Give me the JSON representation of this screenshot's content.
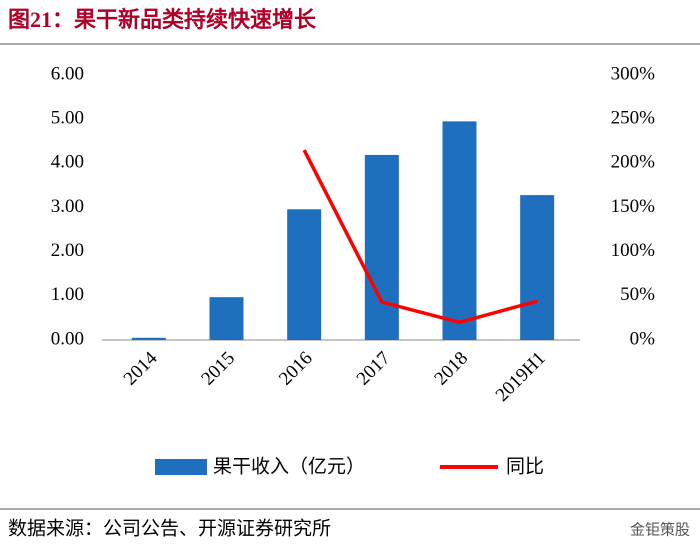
{
  "chart_data": {
    "type": "bar",
    "title": "图21：果干新品类持续快速增长",
    "categories": [
      "2014",
      "2015",
      "2016",
      "2017",
      "2018",
      "2019H1"
    ],
    "series": [
      {
        "name": "果干收入（亿元）",
        "type": "bar",
        "color": "#1f6fbf",
        "values": [
          0.05,
          0.97,
          2.96,
          4.19,
          4.95,
          3.28
        ]
      },
      {
        "name": "同比",
        "type": "line",
        "axis": "y2",
        "color": "#ff0000",
        "values": [
          null,
          null,
          215,
          43,
          20,
          44
        ]
      }
    ],
    "ylim": [
      0,
      6
    ],
    "yticks": [
      {
        "value": 0,
        "label": "0.00"
      },
      {
        "value": 1,
        "label": "1.00"
      },
      {
        "value": 2,
        "label": "2.00"
      },
      {
        "value": 3,
        "label": "3.00"
      },
      {
        "value": 4,
        "label": "4.00"
      },
      {
        "value": 5,
        "label": "5.00"
      },
      {
        "value": 6,
        "label": "6.00"
      }
    ],
    "y2lim": [
      0,
      300
    ],
    "y2ticks": [
      {
        "value": 0,
        "label": "0%"
      },
      {
        "value": 50,
        "label": "50%"
      },
      {
        "value": 100,
        "label": "100%"
      },
      {
        "value": 150,
        "label": "150%"
      },
      {
        "value": 200,
        "label": "200%"
      },
      {
        "value": 250,
        "label": "250%"
      },
      {
        "value": 300,
        "label": "300%"
      }
    ],
    "grid": false,
    "legend": "bottom",
    "source": "数据来源：公司公告、开源证券研究所",
    "watermark": "金钜策股"
  }
}
